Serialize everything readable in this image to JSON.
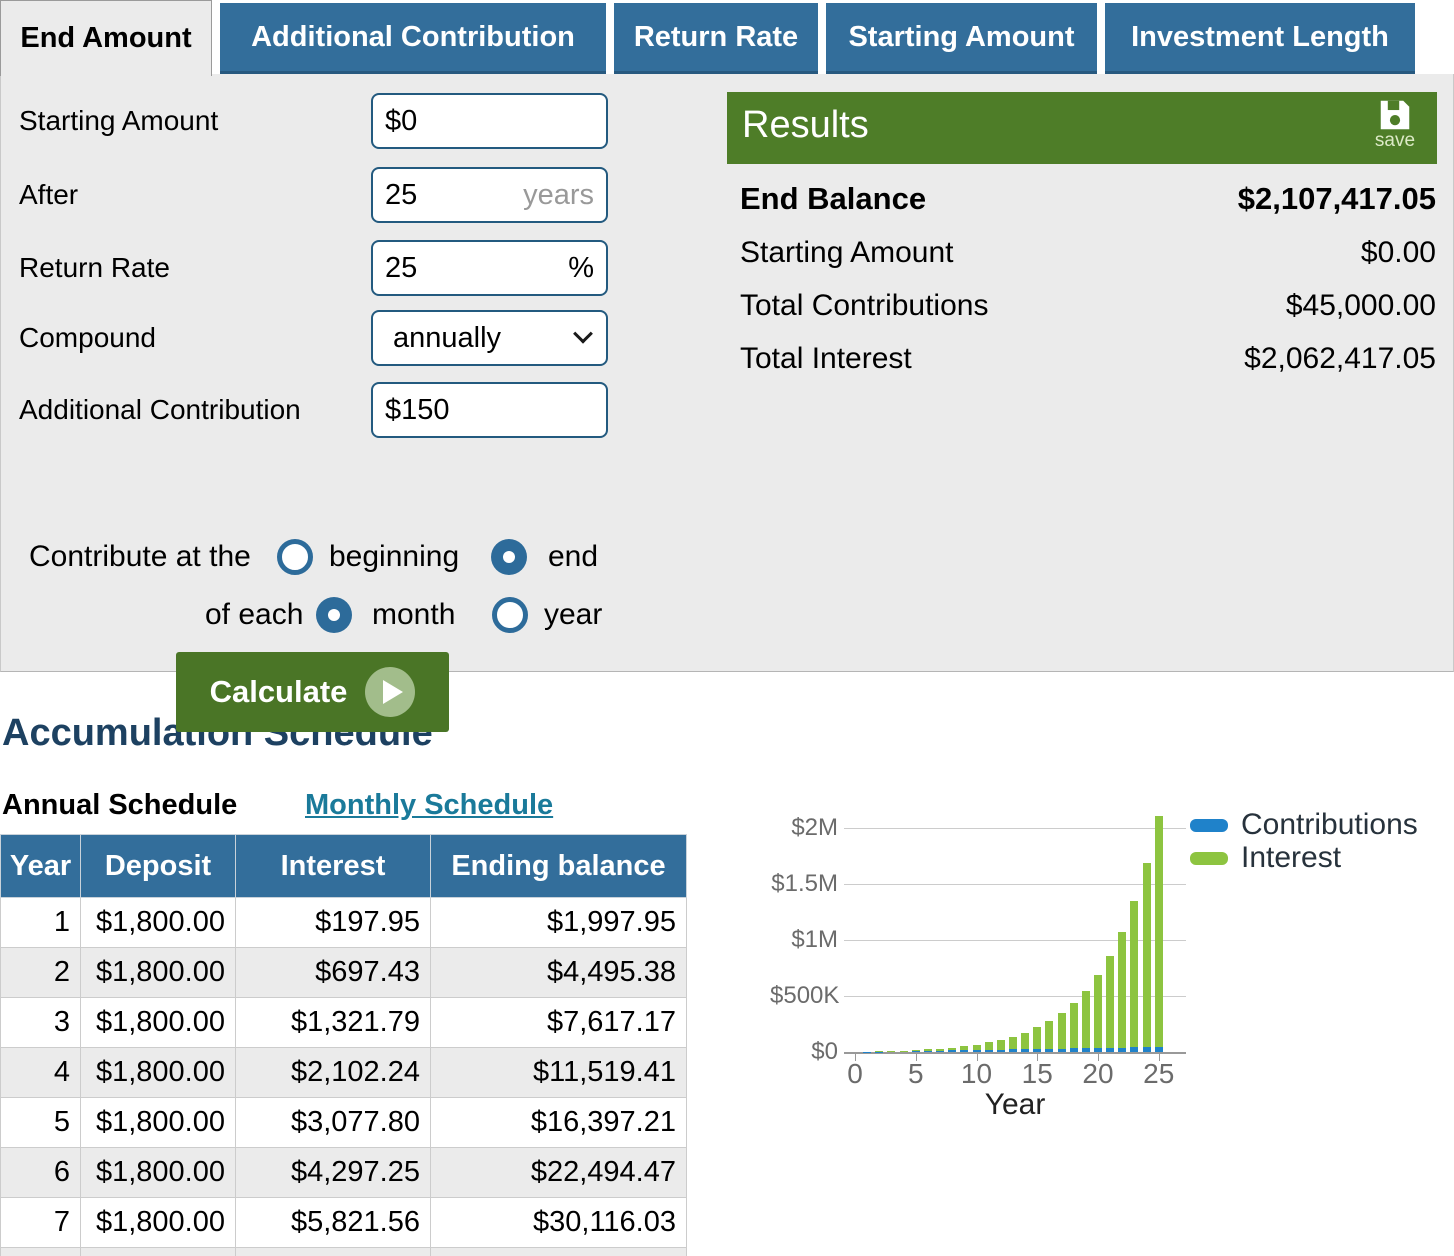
{
  "tabs": {
    "items": [
      {
        "id": "end-amount",
        "label": "End Amount",
        "active": true
      },
      {
        "id": "additional-contribution",
        "label": "Additional Contribution",
        "active": false
      },
      {
        "id": "return-rate",
        "label": "Return Rate",
        "active": false
      },
      {
        "id": "starting-amount",
        "label": "Starting Amount",
        "active": false
      },
      {
        "id": "investment-length",
        "label": "Investment Length",
        "active": false
      }
    ]
  },
  "form": {
    "fields": [
      {
        "id": "starting-amount",
        "label": "Starting Amount",
        "value": "$0",
        "suffix": "",
        "suffix_muted": false,
        "type": "text"
      },
      {
        "id": "after",
        "label": "After",
        "value": "25",
        "suffix": "years",
        "suffix_muted": true,
        "type": "text"
      },
      {
        "id": "return-rate",
        "label": "Return Rate",
        "value": "25",
        "suffix": "%",
        "suffix_muted": false,
        "type": "text"
      },
      {
        "id": "compound",
        "label": "Compound",
        "value": "annually",
        "suffix": "",
        "suffix_muted": false,
        "type": "select"
      },
      {
        "id": "additional-contribution",
        "label": "Additional Contribution",
        "value": "$150",
        "suffix": "",
        "suffix_muted": false,
        "type": "text"
      }
    ],
    "contribute_row1": {
      "prefix": "Contribute at the",
      "options": [
        {
          "id": "beginning",
          "label": "beginning",
          "selected": false
        },
        {
          "id": "end",
          "label": "end",
          "selected": true
        }
      ]
    },
    "contribute_row2": {
      "prefix": "of each",
      "options": [
        {
          "id": "month",
          "label": "month",
          "selected": true
        },
        {
          "id": "year",
          "label": "year",
          "selected": false
        }
      ]
    },
    "calculate_label": "Calculate"
  },
  "results": {
    "title": "Results",
    "save_label": "save",
    "rows": [
      {
        "label": "End Balance",
        "value": "$2,107,417.05",
        "emphasis": true
      },
      {
        "label": "Starting Amount",
        "value": "$0.00",
        "emphasis": false
      },
      {
        "label": "Total Contributions",
        "value": "$45,000.00",
        "emphasis": false
      },
      {
        "label": "Total Interest",
        "value": "$2,062,417.05",
        "emphasis": false
      }
    ]
  },
  "schedule": {
    "heading": "Accumulation Schedule",
    "annual_label": "Annual Schedule",
    "monthly_link": "Monthly Schedule",
    "table": {
      "headers": [
        "Year",
        "Deposit",
        "Interest",
        "Ending balance"
      ],
      "rows": [
        [
          "1",
          "$1,800.00",
          "$197.95",
          "$1,997.95"
        ],
        [
          "2",
          "$1,800.00",
          "$697.43",
          "$4,495.38"
        ],
        [
          "3",
          "$1,800.00",
          "$1,321.79",
          "$7,617.17"
        ],
        [
          "4",
          "$1,800.00",
          "$2,102.24",
          "$11,519.41"
        ],
        [
          "5",
          "$1,800.00",
          "$3,077.80",
          "$16,397.21"
        ],
        [
          "6",
          "$1,800.00",
          "$4,297.25",
          "$22,494.47"
        ],
        [
          "7",
          "$1,800.00",
          "$5,821.56",
          "$30,116.03"
        ]
      ]
    }
  },
  "chart_data": {
    "type": "bar",
    "stacked": true,
    "x": [
      1,
      2,
      3,
      4,
      5,
      6,
      7,
      8,
      9,
      10,
      11,
      12,
      13,
      14,
      15,
      16,
      17,
      18,
      19,
      20,
      21,
      22,
      23,
      24,
      25
    ],
    "series": [
      {
        "name": "Contributions",
        "color": "#1f82ca",
        "values": [
          1800,
          3600,
          5400,
          7200,
          9000,
          10800,
          12600,
          14400,
          16200,
          18000,
          19800,
          21600,
          23400,
          25200,
          27000,
          28800,
          30600,
          32400,
          34200,
          36000,
          37800,
          39600,
          41400,
          43200,
          45000
        ]
      },
      {
        "name": "Interest",
        "color": "#8dc440",
        "values": [
          197.95,
          895.38,
          2217.17,
          4319.41,
          7397.21,
          11694.47,
          17516.03,
          25242.99,
          35351.68,
          48437.55,
          65244.89,
          86704.06,
          113978.03,
          148520.48,
          192148.55,
          247133.64,
          316315.0,
          403241.7,
          512350.07,
          649185.54,
          820679.88,
          1035497.8,
          1304470.2,
          1641135.7,
          2062417.05
        ]
      }
    ],
    "xlabel": "Year",
    "x_ticks": [
      0,
      5,
      10,
      15,
      20,
      25
    ],
    "y_ticks": [
      {
        "value": 0,
        "label": "$0"
      },
      {
        "value": 500000,
        "label": "$500K"
      },
      {
        "value": 1000000,
        "label": "$1M"
      },
      {
        "value": 1500000,
        "label": "$1.5M"
      },
      {
        "value": 2000000,
        "label": "$2M"
      }
    ],
    "ylim": [
      0,
      2200000
    ],
    "grid": true,
    "legend_position": "right"
  },
  "icons": {
    "save": "floppy-disk-icon",
    "calculate": "play-circle-icon",
    "compound": "chevron-down-icon"
  },
  "colors": {
    "tab_blue": "#336e9b",
    "accent_green": "#4e7d28",
    "link_teal": "#1a7a9a",
    "heading_navy": "#1d4161",
    "chart_blue": "#1f82ca",
    "chart_green": "#8dc440"
  }
}
